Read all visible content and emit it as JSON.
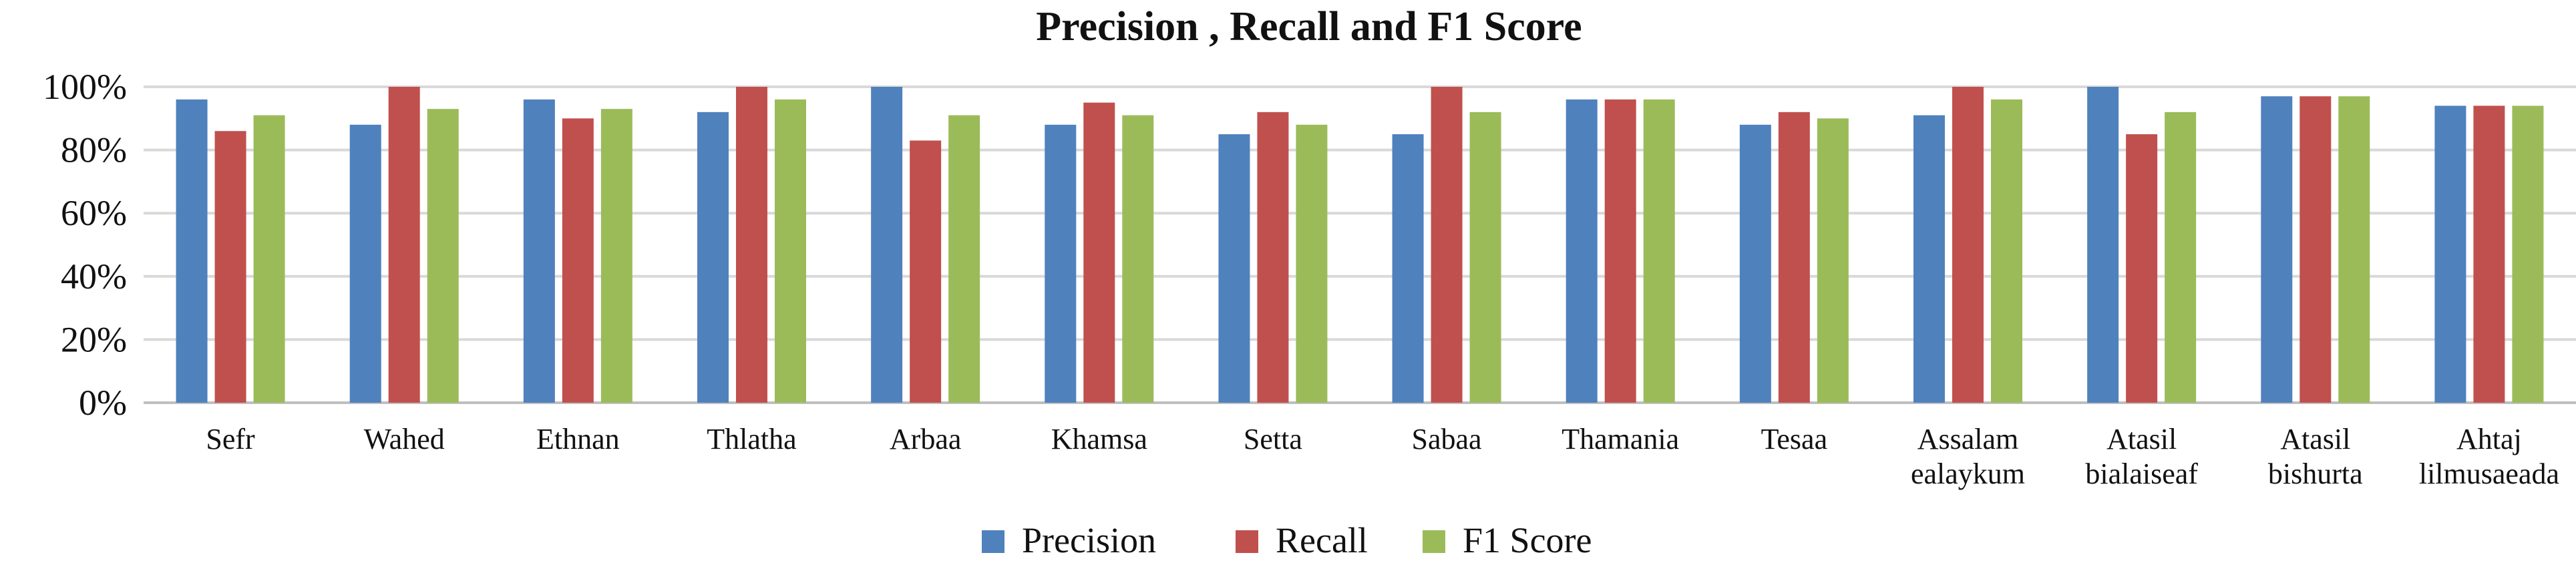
{
  "chart_data": {
    "type": "bar",
    "title": "Precision , Recall and F1 Score",
    "categories": [
      [
        "Sefr"
      ],
      [
        "Wahed"
      ],
      [
        "Ethnan"
      ],
      [
        "Thlatha"
      ],
      [
        "Arbaa"
      ],
      [
        "Khamsa"
      ],
      [
        "Setta"
      ],
      [
        "Sabaa"
      ],
      [
        "Thamania"
      ],
      [
        "Tesaa"
      ],
      [
        "Assalam",
        "ealaykum"
      ],
      [
        "Atasil",
        "bialaiseaf"
      ],
      [
        "Atasil",
        "bishurta"
      ],
      [
        "Ahtaj",
        "lilmusaeada"
      ]
    ],
    "series": [
      {
        "name": "Precision",
        "color": "#4f81bd",
        "values": [
          96,
          88,
          96,
          92,
          100,
          88,
          85,
          85,
          96,
          88,
          91,
          100,
          97,
          94
        ]
      },
      {
        "name": "Recall",
        "color": "#c0504d",
        "values": [
          86,
          100,
          90,
          100,
          83,
          95,
          92,
          100,
          96,
          92,
          100,
          85,
          97,
          94
        ]
      },
      {
        "name": "F1 Score",
        "color": "#9bbb59",
        "values": [
          91,
          93,
          93,
          96,
          91,
          91,
          88,
          92,
          96,
          90,
          96,
          92,
          97,
          94
        ]
      }
    ],
    "ylim": [
      0,
      100
    ],
    "yticks": [
      0,
      20,
      40,
      60,
      80,
      100
    ],
    "ytick_labels": [
      "0%",
      "20%",
      "40%",
      "60%",
      "80%",
      "100%"
    ],
    "grid": true,
    "legend": "bottom-center"
  }
}
